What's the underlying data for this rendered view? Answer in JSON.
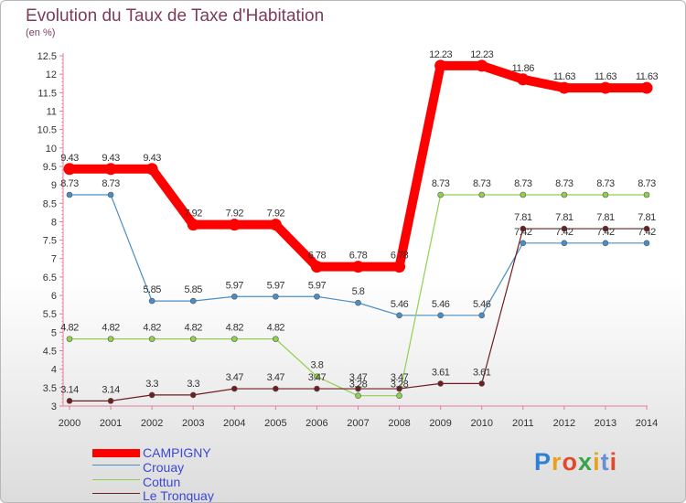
{
  "title": "Evolution du Taux de Taxe d'Habitation",
  "unit_label": "(en %)",
  "logo_text": "Proxiti",
  "chart_data": {
    "type": "line",
    "title": "Evolution du Taux de Taxe d'Habitation",
    "ylabel": "(en %)",
    "x": [
      "2000",
      "2001",
      "2002",
      "2003",
      "2004",
      "2005",
      "2006",
      "2007",
      "2008",
      "2009",
      "2010",
      "2011",
      "2012",
      "2013",
      "2014"
    ],
    "yticks": [
      "3",
      "3.5",
      "4",
      "4.5",
      "5",
      "5.5",
      "6",
      "6.5",
      "7",
      "7.5",
      "8",
      "8.5",
      "9",
      "9.5",
      "10",
      "10.5",
      "11",
      "11.5",
      "12",
      "12.5"
    ],
    "ylim": [
      3,
      12.5
    ],
    "grid": false,
    "legend_position": "bottom-left",
    "series": [
      {
        "name": "CAMPIGNY",
        "color": "#ff0000",
        "values": [
          9.43,
          9.43,
          9.43,
          7.92,
          7.92,
          7.92,
          6.78,
          6.78,
          6.78,
          12.23,
          12.23,
          11.86,
          11.63,
          11.63,
          11.63
        ]
      },
      {
        "name": "Crouay",
        "color": "#4a8ec6",
        "values": [
          8.73,
          8.73,
          5.85,
          5.85,
          5.97,
          5.97,
          5.97,
          5.8,
          5.46,
          5.46,
          5.46,
          7.42,
          7.42,
          7.42,
          7.42
        ]
      },
      {
        "name": "Cottun",
        "color": "#8fd14f",
        "values": [
          4.82,
          4.82,
          4.82,
          4.82,
          4.82,
          4.82,
          3.8,
          3.28,
          3.28,
          8.73,
          8.73,
          8.73,
          8.73,
          8.73,
          8.73
        ]
      },
      {
        "name": "Le Tronquay",
        "color": "#6e1e1e",
        "values": [
          3.14,
          3.14,
          3.3,
          3.3,
          3.47,
          3.47,
          3.47,
          3.47,
          3.47,
          3.61,
          3.61,
          7.81,
          7.81,
          7.81,
          7.81
        ]
      }
    ],
    "value_labels": [
      [
        "9.43",
        "9.43",
        "9.43",
        "7.92",
        "7.92",
        "7.92",
        "6.78",
        "6.78",
        "6.78",
        "12.23",
        "12.23",
        "11.86",
        "11.63",
        "11.63",
        "11.63"
      ],
      [
        "8.73",
        "8.73",
        "5.85",
        "5.85",
        "5.97",
        "5.97",
        "5.97",
        "5.8",
        "5.46",
        "5.46",
        "5.46",
        "7.42",
        "7.42",
        "7.42",
        "7.42"
      ],
      [
        "4.82",
        "4.82",
        "4.82",
        "4.82",
        "4.82",
        "4.82",
        "3.8",
        "3.28",
        "3.28",
        "8.73",
        "8.73",
        "8.73",
        "8.73",
        "8.73",
        "8.73"
      ],
      [
        "3.14",
        "3.14",
        "3.3",
        "3.3",
        "3.47",
        "3.47",
        "3.47",
        "3.47",
        "3.47",
        "3.61",
        "3.61",
        "7.81",
        "7.81",
        "7.81",
        "7.81"
      ]
    ]
  }
}
